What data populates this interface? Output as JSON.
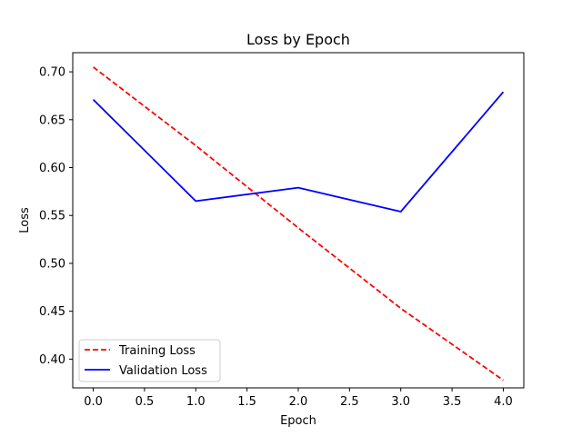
{
  "chart_data": {
    "type": "line",
    "title": "Loss by Epoch",
    "xlabel": "Epoch",
    "ylabel": "Loss",
    "x": [
      0,
      1,
      2,
      3,
      4
    ],
    "xlim": [
      -0.2,
      4.2
    ],
    "ylim": [
      0.37,
      0.72
    ],
    "xticks": [
      "0.0",
      "0.5",
      "1.0",
      "1.5",
      "2.0",
      "2.5",
      "3.0",
      "3.5",
      "4.0"
    ],
    "yticks": [
      "0.40",
      "0.45",
      "0.50",
      "0.55",
      "0.60",
      "0.65",
      "0.70"
    ],
    "grid": false,
    "legend_position": "lower-left",
    "series": [
      {
        "name": "Training Loss",
        "values": [
          0.705,
          0.623,
          0.537,
          0.453,
          0.378
        ],
        "color": "#ff0000",
        "style": "dashed"
      },
      {
        "name": "Validation Loss",
        "values": [
          0.671,
          0.565,
          0.579,
          0.554,
          0.679
        ],
        "color": "#0000ff",
        "style": "solid"
      }
    ]
  }
}
